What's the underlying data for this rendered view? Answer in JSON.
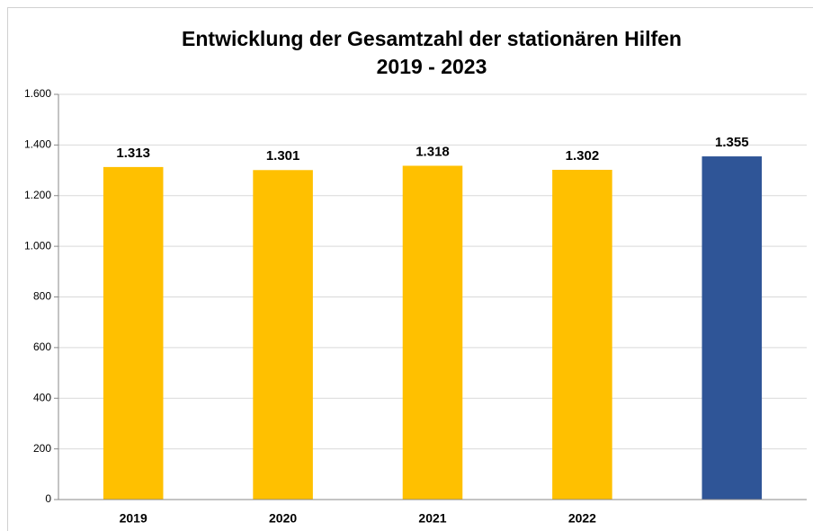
{
  "chart_data": {
    "type": "bar",
    "title": "Entwicklung der Gesamtzahl der stationären Hilfen",
    "subtitle": "2019 - 2023",
    "categories": [
      "2019",
      "2020",
      "2021",
      "2022",
      null
    ],
    "values": [
      1313,
      1301,
      1318,
      1302,
      1355
    ],
    "value_labels": [
      "1.313",
      "1.301",
      "1.318",
      "1.302",
      "1.355"
    ],
    "colors": [
      "#ffc000",
      "#ffc000",
      "#ffc000",
      "#ffc000",
      "#2f5597"
    ],
    "ylim": [
      0,
      1600
    ],
    "yticks": [
      0,
      200,
      400,
      600,
      800,
      {
        "value": 1000,
        "label": "1.000"
      },
      {
        "value": 1200,
        "label": "1.200"
      },
      {
        "value": 1400,
        "label": "1.400"
      },
      {
        "value": 1600,
        "label": "1.600"
      }
    ],
    "grid": true
  }
}
